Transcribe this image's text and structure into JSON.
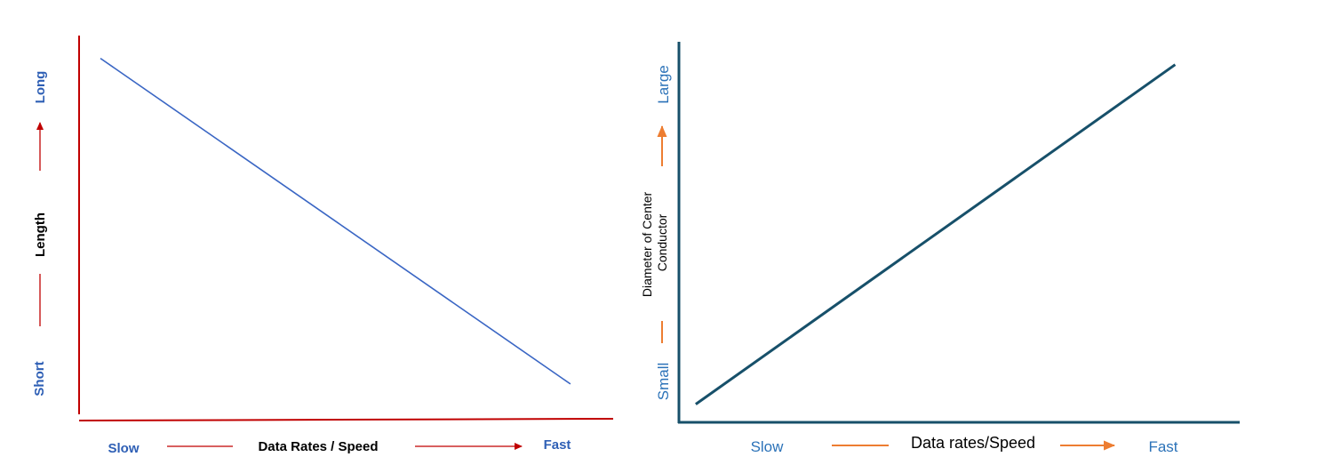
{
  "colors": {
    "chart1_axis": "#c00000",
    "chart1_line": "#3a66c4",
    "chart1_text": "#2e5fb5",
    "chart2_axis": "#17506a",
    "chart2_line": "#17506a",
    "chart2_text": "#2b72b8",
    "chart2_arrow": "#ed7d31"
  },
  "chart_data": [
    {
      "type": "line",
      "title": "",
      "xlabel": "Data Rates / Speed",
      "ylabel": "Length",
      "x_tick_labels": {
        "low": "Slow",
        "high": "Fast"
      },
      "y_tick_labels": {
        "low": "Short",
        "high": "Long"
      },
      "xlim": [
        0,
        1
      ],
      "ylim": [
        0,
        1
      ],
      "grid": false,
      "series": [
        {
          "x": [
            0.04,
            0.92
          ],
          "y": [
            0.94,
            0.08
          ]
        }
      ]
    },
    {
      "type": "line",
      "title": "",
      "xlabel": "Data rates/Speed",
      "ylabel": "Diameter of Center Conductor",
      "x_tick_labels": {
        "low": "Slow",
        "high": "Fast"
      },
      "y_tick_labels": {
        "low": "Small",
        "high": "Large"
      },
      "xlim": [
        0,
        1
      ],
      "ylim": [
        0,
        1
      ],
      "grid": false,
      "series": [
        {
          "x": [
            0.03,
            0.885
          ],
          "y": [
            0.05,
            0.94
          ]
        }
      ]
    }
  ]
}
